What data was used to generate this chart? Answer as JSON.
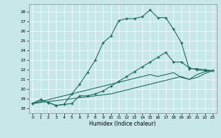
{
  "xlabel": "Humidex (Indice chaleur)",
  "xlim": [
    -0.5,
    23.5
  ],
  "ylim": [
    17.5,
    28.8
  ],
  "xticks": [
    0,
    1,
    2,
    3,
    4,
    5,
    6,
    7,
    8,
    9,
    10,
    11,
    12,
    13,
    14,
    15,
    16,
    17,
    18,
    19,
    20,
    21,
    22,
    23
  ],
  "yticks": [
    18,
    19,
    20,
    21,
    22,
    23,
    24,
    25,
    26,
    27,
    28
  ],
  "bg_color": "#c8e8e8",
  "line_color": "#1a6b5a",
  "grid_color": "#e0f0f0",
  "line1_x": [
    0,
    1,
    2,
    3,
    4,
    5,
    6,
    7,
    8,
    9,
    10,
    11,
    12,
    13,
    14,
    15,
    16,
    17,
    18,
    19,
    20,
    21,
    22,
    23
  ],
  "line1_y": [
    18.5,
    18.9,
    18.6,
    18.3,
    18.4,
    19.5,
    20.5,
    21.7,
    23.0,
    24.8,
    25.5,
    27.1,
    27.3,
    27.3,
    27.5,
    28.2,
    27.4,
    27.4,
    26.2,
    24.8,
    22.1,
    22.1,
    22.0,
    21.9
  ],
  "line2_x": [
    0,
    1,
    2,
    3,
    4,
    5,
    6,
    7,
    8,
    9,
    10,
    11,
    12,
    13,
    14,
    15,
    16,
    17,
    18,
    19,
    20,
    21,
    22,
    23
  ],
  "line2_y": [
    18.5,
    18.9,
    18.6,
    18.3,
    18.4,
    18.5,
    19.3,
    19.3,
    19.5,
    19.8,
    20.3,
    20.8,
    21.3,
    21.8,
    22.3,
    22.8,
    23.3,
    23.8,
    22.8,
    22.8,
    22.2,
    22.0,
    21.9,
    21.9
  ],
  "line3_x": [
    0,
    1,
    2,
    3,
    4,
    5,
    6,
    7,
    8,
    9,
    10,
    11,
    12,
    13,
    14,
    15,
    16,
    17,
    18,
    19,
    20,
    21,
    22,
    23
  ],
  "line3_y": [
    18.5,
    18.7,
    18.9,
    19.1,
    19.3,
    19.5,
    19.7,
    19.9,
    20.1,
    20.3,
    20.5,
    20.7,
    20.9,
    21.1,
    21.3,
    21.5,
    21.3,
    21.5,
    21.7,
    21.2,
    21.0,
    21.5,
    21.8,
    21.9
  ],
  "line4_x": [
    0,
    1,
    2,
    3,
    4,
    5,
    6,
    7,
    8,
    9,
    10,
    11,
    12,
    13,
    14,
    15,
    16,
    17,
    18,
    19,
    20,
    21,
    22,
    23
  ],
  "line4_y": [
    18.5,
    18.6,
    18.7,
    18.8,
    18.9,
    19.0,
    19.1,
    19.2,
    19.3,
    19.4,
    19.5,
    19.7,
    19.9,
    20.1,
    20.3,
    20.5,
    20.7,
    20.9,
    21.1,
    21.3,
    21.0,
    21.2,
    21.6,
    21.9
  ]
}
